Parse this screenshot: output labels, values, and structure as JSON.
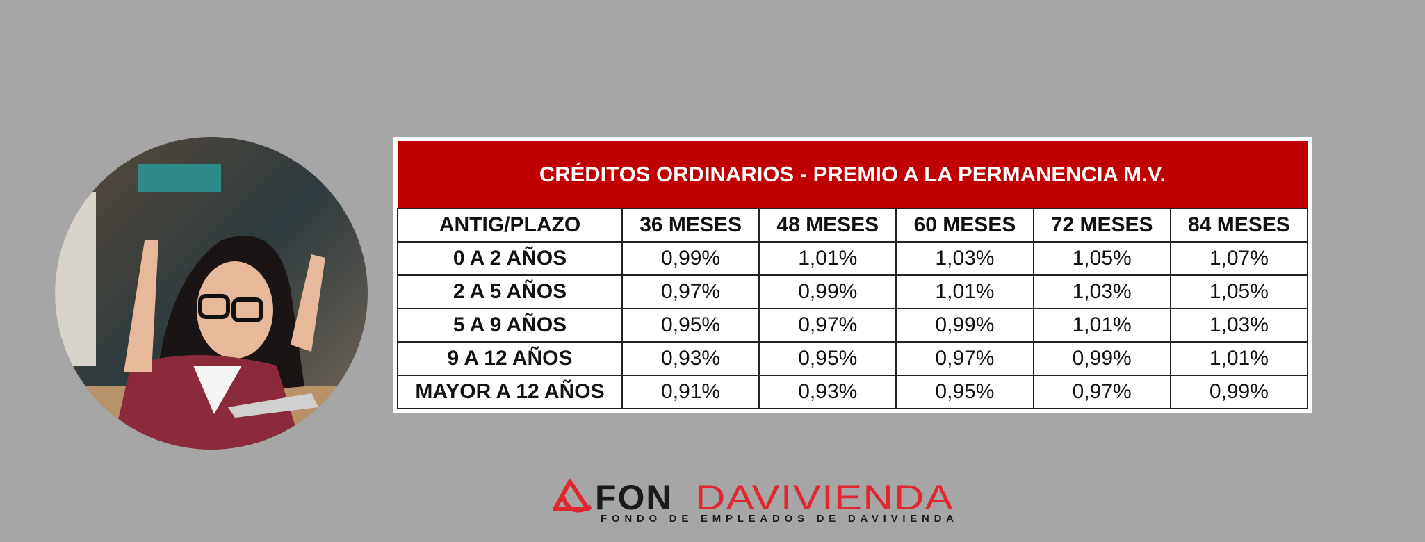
{
  "table": {
    "title": "CRÉDITOS ORDINARIOS - PREMIO A LA PERMANENCIA M.V.",
    "header": [
      "ANTIG/PLAZO",
      "36 MESES",
      "48 MESES",
      "60 MESES",
      "72 MESES",
      "84 MESES"
    ],
    "rows": [
      [
        "0 A 2 AÑOS",
        "0,99%",
        "1,01%",
        "1,03%",
        "1,05%",
        "1,07%"
      ],
      [
        "2 A 5 AÑOS",
        "0,97%",
        "0,99%",
        "1,01%",
        "1,03%",
        "1,05%"
      ],
      [
        "5 A 9 AÑOS",
        "0,95%",
        "0,97%",
        "0,99%",
        "1,01%",
        "1,03%"
      ],
      [
        "9 A 12 AÑOS",
        "0,93%",
        "0,95%",
        "0,97%",
        "0,99%",
        "1,01%"
      ],
      [
        "MAYOR A 12 AÑOS",
        "0,91%",
        "0,93%",
        "0,95%",
        "0,97%",
        "0,99%"
      ]
    ]
  },
  "logo": {
    "part1": "FON",
    "part2": "DAVIVIENDA",
    "tagline": "FONDO DE EMPLEADOS DE DAVIVIENDA"
  }
}
